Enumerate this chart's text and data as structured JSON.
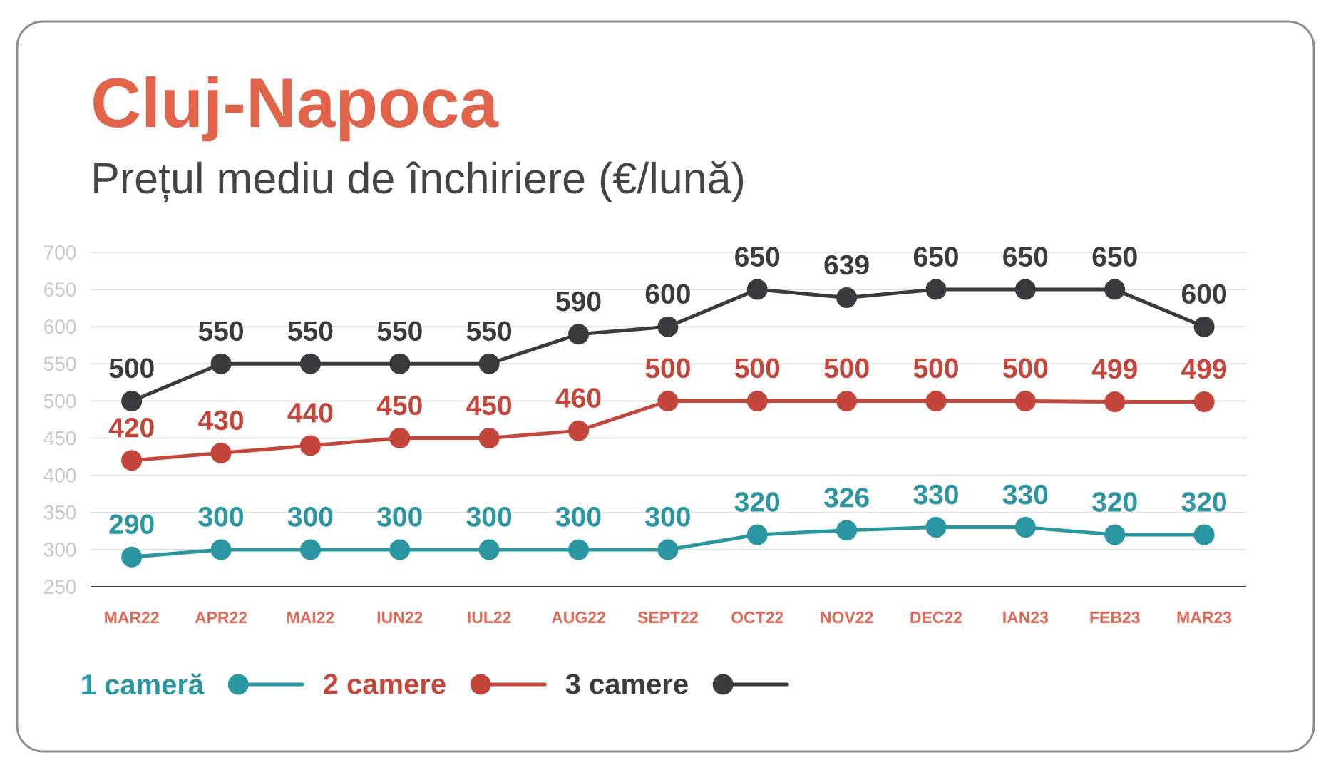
{
  "chart_data": {
    "type": "line",
    "title": "Cluj-Napoca",
    "subtitle": "Prețul mediu de închiriere (€/lună)",
    "categories": [
      "MAR22",
      "APR22",
      "MAI22",
      "IUN22",
      "IUL22",
      "AUG22",
      "SEPT22",
      "OCT22",
      "NOV22",
      "DEC22",
      "IAN23",
      "FEB23",
      "MAR23"
    ],
    "series": [
      {
        "name": "1 cameră",
        "color": "#2a96a2",
        "values": [
          290,
          300,
          300,
          300,
          300,
          300,
          300,
          320,
          326,
          330,
          330,
          320,
          320
        ]
      },
      {
        "name": "2 camere",
        "color": "#c4453a",
        "values": [
          420,
          430,
          440,
          450,
          450,
          460,
          500,
          500,
          500,
          500,
          500,
          499,
          499
        ]
      },
      {
        "name": "3 camere",
        "color": "#3b3b3d",
        "values": [
          500,
          550,
          550,
          550,
          550,
          590,
          600,
          650,
          639,
          650,
          650,
          650,
          600
        ]
      }
    ],
    "ylim": [
      250,
      700
    ],
    "yticks": [
      250,
      300,
      350,
      400,
      450,
      500,
      550,
      600,
      650,
      700
    ],
    "grid": "y",
    "data_labels": true,
    "legend": "bottom left",
    "marker": "circle",
    "line_style": "solid"
  }
}
